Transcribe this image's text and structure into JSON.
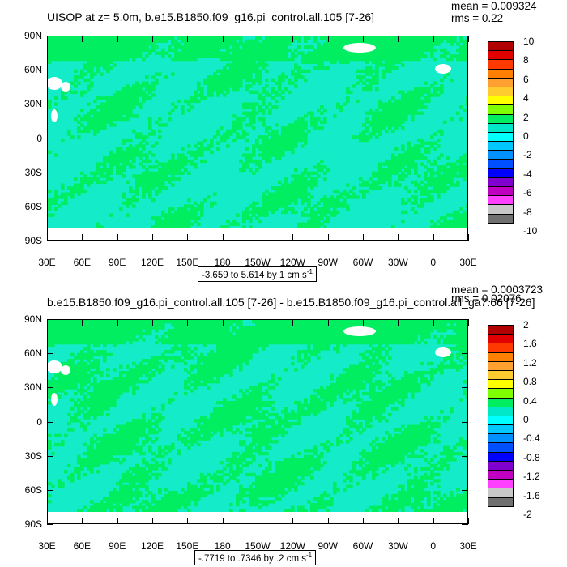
{
  "panels": [
    {
      "title": "UISOP at z=   5.0m, b.e15.B1850.f09_g16.pi_control.all.105 [7-26]",
      "mean": "mean = 0.009324",
      "rms": "rms = 0.22",
      "range_label_pre": "-3.659 to 5.614 by 1 cm s",
      "range_label_sup": "-1",
      "colorbar_labels": [
        "10",
        "8",
        "6",
        "4",
        "2",
        "0",
        "-2",
        "-4",
        "-6",
        "-8",
        "-10"
      ],
      "land_fraction": 0.55
    },
    {
      "title": "b.e15.B1850.f09_g16.pi_control.all.105 [7-26] - b.e15.B1850.f09_g16.pi_control.all_ga7.66 [7-26]",
      "mean": "mean = 0.0003723",
      "rms": "rms = 0.02076",
      "range_label_pre": "-.7719 to .7346 by .2 cm s",
      "range_label_sup": "-1",
      "colorbar_labels": [
        "2",
        "1.6",
        "1.2",
        "0.8",
        "0.4",
        "0",
        "-0.4",
        "-0.8",
        "-1.2",
        "-1.6",
        "-2"
      ],
      "land_fraction": 0.62
    }
  ],
  "axes": {
    "y_labels": [
      "90N",
      "60N",
      "30N",
      "0",
      "30S",
      "60S",
      "90S"
    ],
    "x_labels": [
      "30E",
      "60E",
      "90E",
      "120E",
      "150E",
      "180",
      "150W",
      "120W",
      "90W",
      "60W",
      "30W",
      "0",
      "30E"
    ]
  },
  "colors": {
    "colorbar": [
      "#b00000",
      "#e00000",
      "#ff3a00",
      "#ff8000",
      "#ffa030",
      "#ffcc30",
      "#ffff00",
      "#80ff00",
      "#00ee60",
      "#00e8c8",
      "#00ffff",
      "#00c8ff",
      "#0090ff",
      "#0050ff",
      "#0000ff",
      "#8000d0",
      "#c000c0",
      "#ff40ff",
      "#c8c8c8",
      "#707070"
    ],
    "green": "#00ee60",
    "cyan": "#14ebc8",
    "ice": "#ffffff"
  }
}
